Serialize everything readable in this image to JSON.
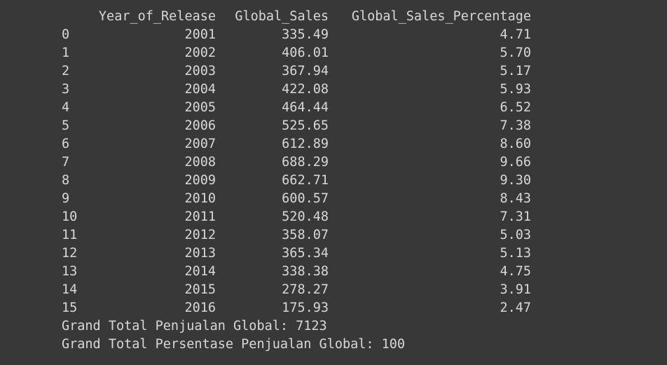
{
  "table": {
    "columns": [
      "Year_of_Release",
      "Global_Sales",
      "Global_Sales_Percentage"
    ],
    "rows": [
      {
        "index": "0",
        "year": "2001",
        "global_sales": "335.49",
        "pct": "4.71"
      },
      {
        "index": "1",
        "year": "2002",
        "global_sales": "406.01",
        "pct": "5.70"
      },
      {
        "index": "2",
        "year": "2003",
        "global_sales": "367.94",
        "pct": "5.17"
      },
      {
        "index": "3",
        "year": "2004",
        "global_sales": "422.08",
        "pct": "5.93"
      },
      {
        "index": "4",
        "year": "2005",
        "global_sales": "464.44",
        "pct": "6.52"
      },
      {
        "index": "5",
        "year": "2006",
        "global_sales": "525.65",
        "pct": "7.38"
      },
      {
        "index": "6",
        "year": "2007",
        "global_sales": "612.89",
        "pct": "8.60"
      },
      {
        "index": "7",
        "year": "2008",
        "global_sales": "688.29",
        "pct": "9.66"
      },
      {
        "index": "8",
        "year": "2009",
        "global_sales": "662.71",
        "pct": "9.30"
      },
      {
        "index": "9",
        "year": "2010",
        "global_sales": "600.57",
        "pct": "8.43"
      },
      {
        "index": "10",
        "year": "2011",
        "global_sales": "520.48",
        "pct": "7.31"
      },
      {
        "index": "11",
        "year": "2012",
        "global_sales": "358.07",
        "pct": "5.03"
      },
      {
        "index": "12",
        "year": "2013",
        "global_sales": "365.34",
        "pct": "5.13"
      },
      {
        "index": "13",
        "year": "2014",
        "global_sales": "338.38",
        "pct": "4.75"
      },
      {
        "index": "14",
        "year": "2015",
        "global_sales": "278.27",
        "pct": "3.91"
      },
      {
        "index": "15",
        "year": "2016",
        "global_sales": "175.93",
        "pct": "2.47"
      }
    ]
  },
  "footer": {
    "total_sales": "Grand Total Penjualan Global: 7123",
    "total_pct": "Grand Total Persentase Penjualan Global: 100"
  },
  "colors": {
    "background": "#383838",
    "text": "#d8d8d8"
  }
}
